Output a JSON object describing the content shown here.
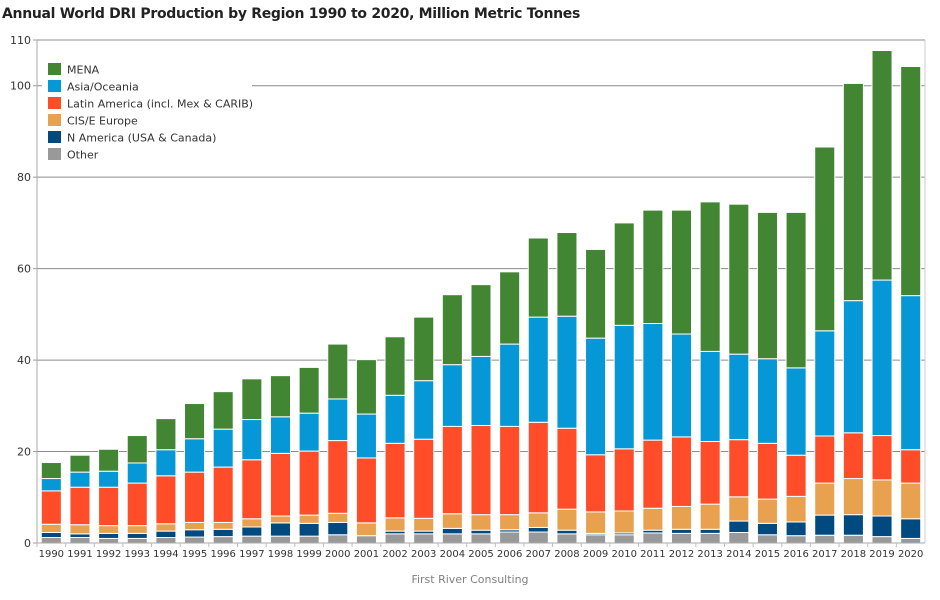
{
  "chart_data": {
    "type": "bar",
    "stacked": true,
    "title": "Annual World DRI Production by Region 1990 to 2020, Million Metric Tonnes",
    "xlabel": "",
    "ylabel": "",
    "ylim": [
      0,
      110
    ],
    "yticks": [
      0,
      20,
      40,
      60,
      80,
      100,
      110
    ],
    "grid": true,
    "legend_position": "top-left",
    "categories": [
      "1990",
      "1991",
      "1992",
      "1993",
      "1994",
      "1995",
      "1996",
      "1997",
      "1998",
      "1999",
      "2000",
      "2001",
      "2002",
      "2003",
      "2004",
      "2005",
      "2006",
      "2007",
      "2008",
      "2009",
      "2010",
      "2011",
      "2012",
      "2013",
      "2014",
      "2015",
      "2016",
      "2017",
      "2018",
      "2019",
      "2020"
    ],
    "series": [
      {
        "name": "Other",
        "color": "#999999",
        "values": [
          1.2,
          1.2,
          1.0,
          1.0,
          1.2,
          1.3,
          1.4,
          1.5,
          1.5,
          1.5,
          1.8,
          1.6,
          2.0,
          2.0,
          2.0,
          2.0,
          2.4,
          2.4,
          2.0,
          1.8,
          1.8,
          2.2,
          2.1,
          2.1,
          2.3,
          1.8,
          1.6,
          1.7,
          1.7,
          1.4,
          1.0
        ]
      },
      {
        "name": "N America (USA & Canada)",
        "color": "#004A7F",
        "values": [
          1.1,
          0.8,
          1.1,
          1.1,
          1.4,
          1.6,
          1.6,
          2.0,
          2.9,
          2.8,
          2.7,
          0.0,
          0.6,
          0.6,
          1.2,
          0.8,
          0.5,
          1.0,
          0.8,
          0.3,
          0.4,
          0.6,
          0.9,
          0.9,
          2.5,
          2.5,
          3.0,
          4.4,
          4.5,
          4.5,
          4.3
        ]
      },
      {
        "name": "CIS/E Europe",
        "color": "#E8A24F",
        "values": [
          1.8,
          2.0,
          1.7,
          1.7,
          1.6,
          1.6,
          1.5,
          1.8,
          1.5,
          1.8,
          2.0,
          2.8,
          2.9,
          2.8,
          3.2,
          3.4,
          3.3,
          3.2,
          4.6,
          4.7,
          4.8,
          4.8,
          5.0,
          5.5,
          5.3,
          5.3,
          5.6,
          7.0,
          7.9,
          7.9,
          7.8
        ]
      },
      {
        "name": "Latin America (incl. Mex & CARIB)",
        "color": "#FF4D2A",
        "values": [
          7.3,
          8.2,
          8.4,
          9.3,
          10.5,
          11.0,
          12.1,
          12.9,
          13.7,
          14.0,
          15.9,
          14.2,
          16.3,
          17.3,
          19.1,
          19.5,
          19.3,
          19.8,
          17.7,
          12.5,
          13.6,
          14.9,
          15.2,
          13.7,
          12.5,
          12.2,
          9.0,
          10.3,
          10.0,
          9.7,
          7.3
        ]
      },
      {
        "name": "Asia/Oceania",
        "color": "#0697D6",
        "values": [
          2.7,
          3.3,
          3.5,
          4.4,
          5.7,
          7.3,
          8.3,
          8.8,
          8.0,
          8.3,
          9.1,
          9.6,
          10.5,
          12.8,
          13.5,
          15.1,
          18.0,
          23.0,
          24.5,
          25.5,
          27.0,
          25.5,
          22.5,
          19.7,
          18.7,
          18.5,
          19.1,
          23.0,
          28.9,
          34.0,
          33.7
        ]
      },
      {
        "name": "MENA",
        "color": "#428634",
        "values": [
          3.5,
          3.7,
          4.8,
          6.0,
          6.8,
          7.7,
          8.2,
          8.9,
          9.0,
          10.0,
          12.0,
          11.9,
          12.8,
          13.9,
          15.3,
          15.7,
          15.8,
          17.3,
          18.3,
          19.4,
          22.4,
          24.8,
          27.1,
          32.7,
          32.8,
          32.0,
          34.0,
          40.2,
          47.5,
          50.2,
          50.1
        ]
      }
    ],
    "legend_order": [
      "MENA",
      "Asia/Oceania",
      "Latin America (incl. Mex & CARIB)",
      "CIS/E Europe",
      "N America (USA & Canada)",
      "Other"
    ]
  },
  "footer": "First River Consulting"
}
